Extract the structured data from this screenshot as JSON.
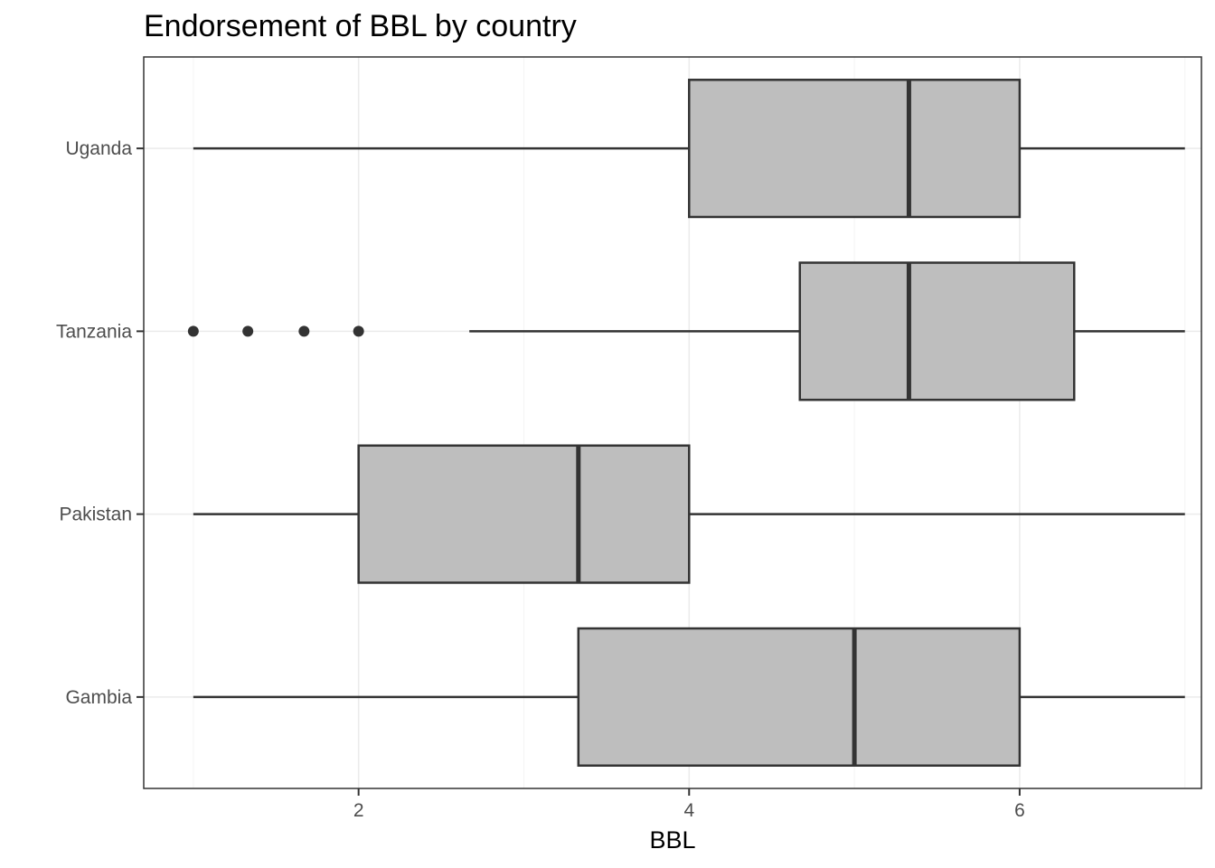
{
  "chart_data": {
    "type": "boxplot",
    "orientation": "horizontal",
    "title": "Endorsement of BBL by country",
    "xlabel": "BBL",
    "ylabel": "",
    "xlim": [
      0.7,
      7.1
    ],
    "x_ticks": [
      2,
      4,
      6
    ],
    "grid": true,
    "categories": [
      "Gambia",
      "Pakistan",
      "Tanzania",
      "Uganda"
    ],
    "boxes": [
      {
        "category": "Gambia",
        "whisker_low": 1.0,
        "q1": 3.33,
        "median": 5.0,
        "q3": 6.0,
        "whisker_high": 7.0,
        "outliers": []
      },
      {
        "category": "Pakistan",
        "whisker_low": 1.0,
        "q1": 2.0,
        "median": 3.33,
        "q3": 4.0,
        "whisker_high": 7.0,
        "outliers": []
      },
      {
        "category": "Tanzania",
        "whisker_low": 2.67,
        "q1": 4.67,
        "median": 5.33,
        "q3": 6.33,
        "whisker_high": 7.0,
        "outliers": [
          1.0,
          1.33,
          1.67,
          2.0
        ]
      },
      {
        "category": "Uganda",
        "whisker_low": 1.0,
        "q1": 4.0,
        "median": 5.33,
        "q3": 6.0,
        "whisker_high": 7.0,
        "outliers": []
      }
    ],
    "colors": {
      "box_fill": "#bebebe",
      "box_stroke": "#333333",
      "grid_major": "#ebebeb",
      "grid_minor": "#f4f4f4",
      "panel_border": "#333333"
    }
  }
}
